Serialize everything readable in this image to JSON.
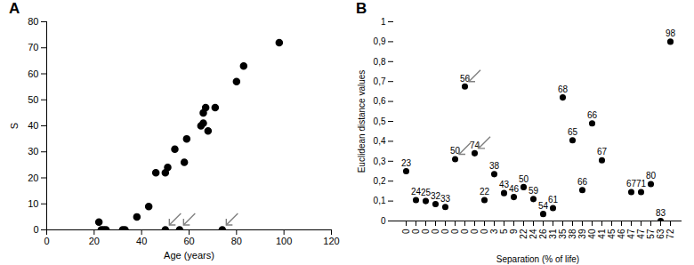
{
  "chart_data": [
    {
      "type": "scatter",
      "title": "A",
      "x_label": "Age (years)",
      "y_label": "S",
      "x": [
        22,
        23,
        24,
        25,
        32,
        33,
        38,
        43,
        46,
        50,
        50,
        51,
        54,
        56,
        58,
        59,
        65,
        66,
        66,
        67,
        68,
        71,
        74,
        80,
        83,
        98
      ],
      "y": [
        3,
        0,
        0,
        0,
        0,
        0,
        5,
        9,
        22,
        0,
        22,
        24,
        31,
        0,
        26,
        35,
        40,
        41,
        45,
        47,
        38,
        47,
        0,
        57,
        63,
        72
      ],
      "arrows": [
        9,
        13,
        22
      ],
      "xlim": [
        0,
        120
      ],
      "xticks": [
        0,
        20,
        40,
        60,
        80,
        100,
        120
      ],
      "ylim": [
        0,
        80
      ],
      "yticks": [
        0,
        10,
        20,
        30,
        40,
        50,
        60,
        70,
        80
      ],
      "color": "#000000",
      "marker": "circle",
      "grid": false
    },
    {
      "type": "scatter",
      "title": "B",
      "x_label": "Separation (% of life)",
      "y_label": "Euclidean distance values",
      "categories": [
        "0",
        "0",
        "0",
        "0",
        "0",
        "0",
        "0",
        "0",
        "0",
        "3",
        "5",
        "9",
        "22",
        "24",
        "26",
        "31",
        "35",
        "38",
        "39",
        "40",
        "41",
        "45",
        "46",
        "47",
        "47",
        "57",
        "63",
        "72"
      ],
      "values": [
        0.25,
        0.105,
        0.1,
        0.085,
        0.07,
        0.31,
        0.675,
        0.34,
        0.105,
        0.235,
        0.14,
        0.12,
        0.17,
        0.11,
        0.035,
        0.065,
        0.62,
        0.405,
        0.155,
        0.49,
        0.305,
        null,
        null,
        0.145,
        0.145,
        0.185,
        0.0,
        0.9
      ],
      "point_labels": [
        "23",
        "24",
        "25",
        "32",
        "33",
        "50",
        "56",
        "74",
        "22",
        "38",
        "43",
        "46",
        "50",
        "59",
        "54",
        "61",
        "68",
        "65",
        "66",
        "66",
        "67",
        null,
        null,
        "67",
        "71",
        "80",
        "83",
        "98"
      ],
      "arrows": [
        5,
        6,
        7
      ],
      "ylim": [
        0,
        1
      ],
      "yticks": [
        0,
        {
          "value": 0.1,
          "label": "0,1"
        },
        {
          "value": 0.2,
          "label": "0,2"
        },
        {
          "value": 0.3,
          "label": "0,3"
        },
        {
          "value": 0.4,
          "label": "0,4"
        },
        {
          "value": 0.5,
          "label": "0,5"
        },
        {
          "value": 0.6,
          "label": "0,6"
        },
        {
          "value": 0.7,
          "label": "0,7"
        },
        {
          "value": 0.8,
          "label": "0,8"
        },
        {
          "value": 0.9,
          "label": "0,9"
        },
        1
      ],
      "color": "#000000",
      "marker": "circle",
      "grid": false
    }
  ]
}
